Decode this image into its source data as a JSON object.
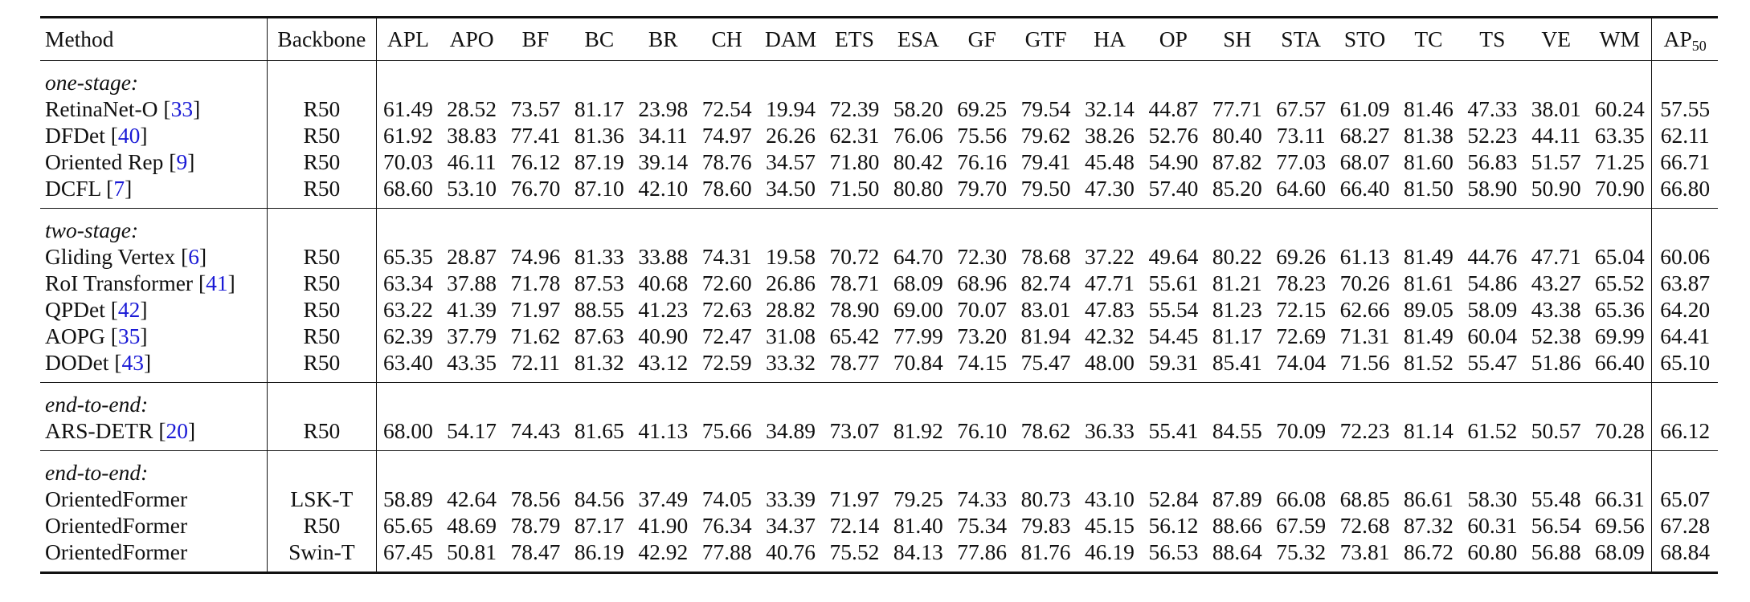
{
  "table": {
    "header": {
      "method": "Method",
      "backbone": "Backbone",
      "categories": [
        "APL",
        "APO",
        "BF",
        "BC",
        "BR",
        "CH",
        "DAM",
        "ETS",
        "ESA",
        "GF",
        "GTF",
        "HA",
        "OP",
        "SH",
        "STA",
        "STO",
        "TC",
        "TS",
        "VE",
        "WM"
      ],
      "ap_main": "AP",
      "ap_sub": "50"
    },
    "groups": [
      {
        "label": "one-stage:",
        "rows": [
          {
            "name": "RetinaNet-O",
            "ref": "33",
            "backbone": "R50",
            "values": [
              "61.49",
              "28.52",
              "73.57",
              "81.17",
              "23.98",
              "72.54",
              "19.94",
              "72.39",
              "58.20",
              "69.25",
              "79.54",
              "32.14",
              "44.87",
              "77.71",
              "67.57",
              "61.09",
              "81.46",
              "47.33",
              "38.01",
              "60.24"
            ],
            "ap": "57.55",
            "bold": [],
            "ap_bold": false
          },
          {
            "name": "DFDet",
            "ref": "40",
            "backbone": "R50",
            "values": [
              "61.92",
              "38.83",
              "77.41",
              "81.36",
              "34.11",
              "74.97",
              "26.26",
              "62.31",
              "76.06",
              "75.56",
              "79.62",
              "38.26",
              "52.76",
              "80.40",
              "73.11",
              "68.27",
              "81.38",
              "52.23",
              "44.11",
              "63.35"
            ],
            "ap": "62.11",
            "bold": [],
            "ap_bold": false
          },
          {
            "name": "Oriented Rep",
            "ref": "9",
            "backbone": "R50",
            "values": [
              "70.03",
              "46.11",
              "76.12",
              "87.19",
              "39.14",
              "78.76",
              "34.57",
              "71.80",
              "80.42",
              "76.16",
              "79.41",
              "45.48",
              "54.90",
              "87.82",
              "77.03",
              "68.07",
              "81.60",
              "56.83",
              "51.57",
              "71.25"
            ],
            "ap": "66.71",
            "bold": [
              0,
              5,
              19
            ],
            "ap_bold": false
          },
          {
            "name": "DCFL",
            "ref": "7",
            "backbone": "R50",
            "values": [
              "68.60",
              "53.10",
              "76.70",
              "87.10",
              "42.10",
              "78.60",
              "34.50",
              "71.50",
              "80.80",
              "79.70",
              "79.50",
              "47.30",
              "57.40",
              "85.20",
              "64.60",
              "66.40",
              "81.50",
              "58.90",
              "50.90",
              "70.90"
            ],
            "ap": "66.80",
            "bold": [
              9
            ],
            "ap_bold": false
          }
        ]
      },
      {
        "label": "two-stage:",
        "rows": [
          {
            "name": "Gliding Vertex",
            "ref": "6",
            "backbone": "R50",
            "values": [
              "65.35",
              "28.87",
              "74.96",
              "81.33",
              "33.88",
              "74.31",
              "19.58",
              "70.72",
              "64.70",
              "72.30",
              "78.68",
              "37.22",
              "49.64",
              "80.22",
              "69.26",
              "61.13",
              "81.49",
              "44.76",
              "47.71",
              "65.04"
            ],
            "ap": "60.06",
            "bold": [],
            "ap_bold": false
          },
          {
            "name": "RoI Transformer",
            "ref": "41",
            "backbone": "R50",
            "values": [
              "63.34",
              "37.88",
              "71.78",
              "87.53",
              "40.68",
              "72.60",
              "26.86",
              "78.71",
              "68.09",
              "68.96",
              "82.74",
              "47.71",
              "55.61",
              "81.21",
              "78.23",
              "70.26",
              "81.61",
              "54.86",
              "43.27",
              "65.52"
            ],
            "ap": "63.87",
            "bold": [
              14
            ],
            "ap_bold": false
          },
          {
            "name": "QPDet",
            "ref": "42",
            "backbone": "R50",
            "values": [
              "63.22",
              "41.39",
              "71.97",
              "88.55",
              "41.23",
              "72.63",
              "28.82",
              "78.90",
              "69.00",
              "70.07",
              "83.01",
              "47.83",
              "55.54",
              "81.23",
              "72.15",
              "62.66",
              "89.05",
              "58.09",
              "43.38",
              "65.36"
            ],
            "ap": "64.20",
            "bold": [
              3,
              7,
              10,
              16
            ],
            "ap_bold": false
          },
          {
            "name": "AOPG",
            "ref": "35",
            "backbone": "R50",
            "values": [
              "62.39",
              "37.79",
              "71.62",
              "87.63",
              "40.90",
              "72.47",
              "31.08",
              "65.42",
              "77.99",
              "73.20",
              "81.94",
              "42.32",
              "54.45",
              "81.17",
              "72.69",
              "71.31",
              "81.49",
              "60.04",
              "52.38",
              "69.99"
            ],
            "ap": "64.41",
            "bold": [],
            "ap_bold": false
          },
          {
            "name": "DODet",
            "ref": "43",
            "backbone": "R50",
            "values": [
              "63.40",
              "43.35",
              "72.11",
              "81.32",
              "43.12",
              "72.59",
              "33.32",
              "78.77",
              "70.84",
              "74.15",
              "75.47",
              "48.00",
              "59.31",
              "85.41",
              "74.04",
              "71.56",
              "81.52",
              "55.47",
              "51.86",
              "66.40"
            ],
            "ap": "65.10",
            "bold": [
              4,
              11,
              12
            ],
            "ap_bold": false
          }
        ]
      },
      {
        "label": "end-to-end:",
        "rows": [
          {
            "name": "ARS-DETR",
            "ref": "20",
            "backbone": "R50",
            "values": [
              "68.00",
              "54.17",
              "74.43",
              "81.65",
              "41.13",
              "75.66",
              "34.89",
              "73.07",
              "81.92",
              "76.10",
              "78.62",
              "36.33",
              "55.41",
              "84.55",
              "70.09",
              "72.23",
              "81.14",
              "61.52",
              "50.57",
              "70.28"
            ],
            "ap": "66.12",
            "bold": [],
            "ap_bold": false
          }
        ]
      },
      {
        "label": "end-to-end:",
        "rows": [
          {
            "name": "OrientedFormer",
            "ref": "",
            "backbone": "LSK-T",
            "values": [
              "58.89",
              "42.64",
              "78.56",
              "84.56",
              "37.49",
              "74.05",
              "33.39",
              "71.97",
              "79.25",
              "74.33",
              "80.73",
              "43.10",
              "52.84",
              "87.89",
              "66.08",
              "68.85",
              "86.61",
              "58.30",
              "55.48",
              "66.31"
            ],
            "ap": "65.07",
            "bold": [],
            "ap_bold": false
          },
          {
            "name": "OrientedFormer",
            "ref": "",
            "backbone": "R50",
            "values": [
              "65.65",
              "48.69",
              "78.79",
              "87.17",
              "41.90",
              "76.34",
              "34.37",
              "72.14",
              "81.40",
              "75.34",
              "79.83",
              "45.15",
              "56.12",
              "88.66",
              "67.59",
              "72.68",
              "87.32",
              "60.31",
              "56.54",
              "69.56"
            ],
            "ap": "67.28",
            "bold": [
              2,
              13
            ],
            "ap_bold": false
          },
          {
            "name": "OrientedFormer",
            "ref": "",
            "backbone": "Swin-T",
            "values": [
              "67.45",
              "50.81",
              "78.47",
              "86.19",
              "42.92",
              "77.88",
              "40.76",
              "75.52",
              "84.13",
              "77.86",
              "81.76",
              "46.19",
              "56.53",
              "88.64",
              "75.32",
              "73.81",
              "86.72",
              "60.80",
              "56.88",
              "68.09"
            ],
            "ap": "68.84",
            "bold": [
              1,
              6,
              8,
              15,
              17,
              18
            ],
            "ap_bold": true
          }
        ]
      }
    ]
  }
}
